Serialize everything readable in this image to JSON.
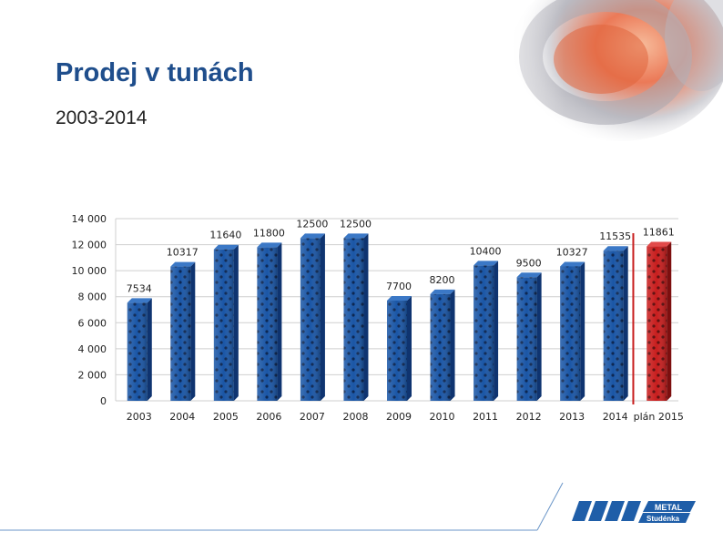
{
  "slide": {
    "title": "Prodej v tunách",
    "subtitle": "2003-2014"
  },
  "logo": {
    "brand": "METAL",
    "place": "Studénka",
    "color": "#1f5ea8"
  },
  "colors": {
    "bar_actual": "#1a56a6",
    "bar_plan": "#c81e1e",
    "grid": "#cfcfcf"
  },
  "chart_data": {
    "type": "bar",
    "title": "",
    "xlabel": "",
    "ylabel": "",
    "ylim": [
      0,
      14000
    ],
    "ytick_labels": [
      "0",
      "2 000",
      "4 000",
      "6 000",
      "8 000",
      "10 000",
      "12 000",
      "14 000"
    ],
    "ytick_values": [
      0,
      2000,
      4000,
      6000,
      8000,
      10000,
      12000,
      14000
    ],
    "categories": [
      "2003",
      "2004",
      "2005",
      "2006",
      "2007",
      "2008",
      "2009",
      "2010",
      "2011",
      "2012",
      "2013",
      "2014",
      "plán 2015"
    ],
    "values": [
      7534,
      10317,
      11640,
      11800,
      12500,
      12500,
      7700,
      8200,
      10400,
      9500,
      10327,
      11535,
      11861
    ],
    "data_labels": [
      "7534",
      "10317",
      "11640",
      "11800",
      "12500",
      "12500",
      "7700",
      "8200",
      "10400",
      "9500",
      "10327",
      "11535",
      "11861"
    ],
    "plan_index": 12,
    "grid": true
  }
}
